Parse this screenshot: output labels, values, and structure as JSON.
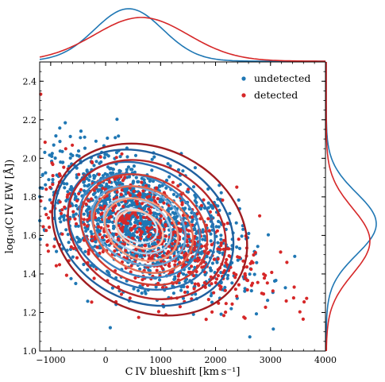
{
  "chart_data": {
    "type": "scatter",
    "title": "",
    "xlabel": "C IV blueshift [km s⁻¹]",
    "ylabel": "log₁₀(C IV EW [Å])",
    "xlim": [
      -1200,
      4000
    ],
    "ylim": [
      1.0,
      2.5
    ],
    "xticks": [
      -1000,
      0,
      1000,
      2000,
      3000,
      4000
    ],
    "xtick_labels": [
      "−1000",
      "0",
      "1000",
      "2000",
      "3000",
      "4000"
    ],
    "yticks": [
      1.0,
      1.2,
      1.4,
      1.6,
      1.8,
      2.0,
      2.2,
      2.4
    ],
    "ytick_labels": [
      "1.0",
      "1.2",
      "1.4",
      "1.6",
      "1.8",
      "2.0",
      "2.2",
      "2.4"
    ],
    "grid": false,
    "legend_position": "top-right",
    "series": [
      {
        "name": "undetected",
        "color": "#1f77b4",
        "cloud": {
          "x_mean": 600,
          "x_std": 900,
          "y_mean": 1.67,
          "y_std": 0.2,
          "slope": -0.000105,
          "n": 1500
        },
        "contours": [
          {
            "cx": 700,
            "cy": 1.64,
            "rx": 1700,
            "ry": 0.38
          },
          {
            "cx": 650,
            "cy": 1.65,
            "rx": 1400,
            "ry": 0.31
          },
          {
            "cx": 620,
            "cy": 1.65,
            "rx": 1150,
            "ry": 0.25
          },
          {
            "cx": 600,
            "cy": 1.65,
            "rx": 900,
            "ry": 0.19
          },
          {
            "cx": 580,
            "cy": 1.65,
            "rx": 650,
            "ry": 0.13
          },
          {
            "cx": 560,
            "cy": 1.65,
            "rx": 400,
            "ry": 0.08
          }
        ],
        "marginal_x": {
          "mean": 420,
          "std": 620
        },
        "marginal_y": {
          "mean": 1.66,
          "std": 0.16
        }
      },
      {
        "name": "detected",
        "color": "#d62728",
        "cloud": {
          "x_mean": 800,
          "x_std": 1000,
          "y_mean": 1.6,
          "y_std": 0.2,
          "slope": -0.0001,
          "n": 700
        },
        "contours": [
          {
            "cx": 800,
            "cy": 1.63,
            "rx": 1850,
            "ry": 0.42
          },
          {
            "cx": 750,
            "cy": 1.63,
            "rx": 1500,
            "ry": 0.34
          },
          {
            "cx": 700,
            "cy": 1.63,
            "rx": 1200,
            "ry": 0.27
          },
          {
            "cx": 680,
            "cy": 1.63,
            "rx": 950,
            "ry": 0.21
          },
          {
            "cx": 650,
            "cy": 1.63,
            "rx": 700,
            "ry": 0.15
          },
          {
            "cx": 620,
            "cy": 1.63,
            "rx": 450,
            "ry": 0.09
          }
        ],
        "marginal_x": {
          "mean": 650,
          "std": 850
        },
        "marginal_y": {
          "mean": 1.57,
          "std": 0.17
        }
      }
    ]
  }
}
